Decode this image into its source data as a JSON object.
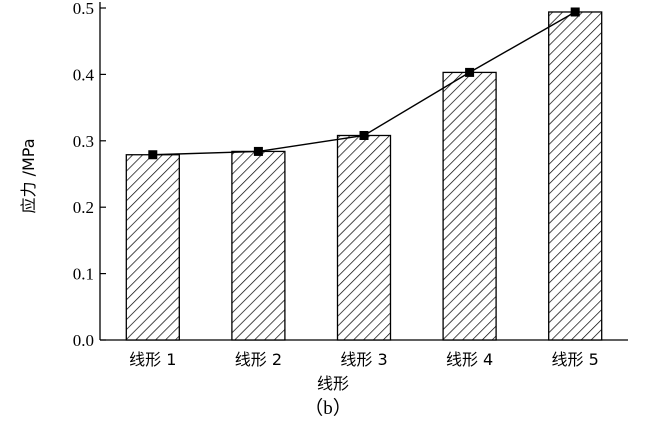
{
  "chart_data": {
    "type": "bar",
    "title": "",
    "xlabel": "线形",
    "ylabel": "应力 /MPa",
    "categories": [
      "线形 1",
      "线形 2",
      "线形 3",
      "线形 4",
      "线形 5"
    ],
    "values": [
      0.279,
      0.284,
      0.308,
      0.403,
      0.494
    ],
    "line_values": [
      0.279,
      0.284,
      0.308,
      0.403,
      0.494
    ],
    "ylim": [
      0,
      0.5
    ],
    "yticks": [
      "0.0",
      "0.1",
      "0.2",
      "0.3",
      "0.4",
      "0.5"
    ],
    "grid": false,
    "bar_fill": "diagonal-hatch",
    "caption": "（b）"
  }
}
